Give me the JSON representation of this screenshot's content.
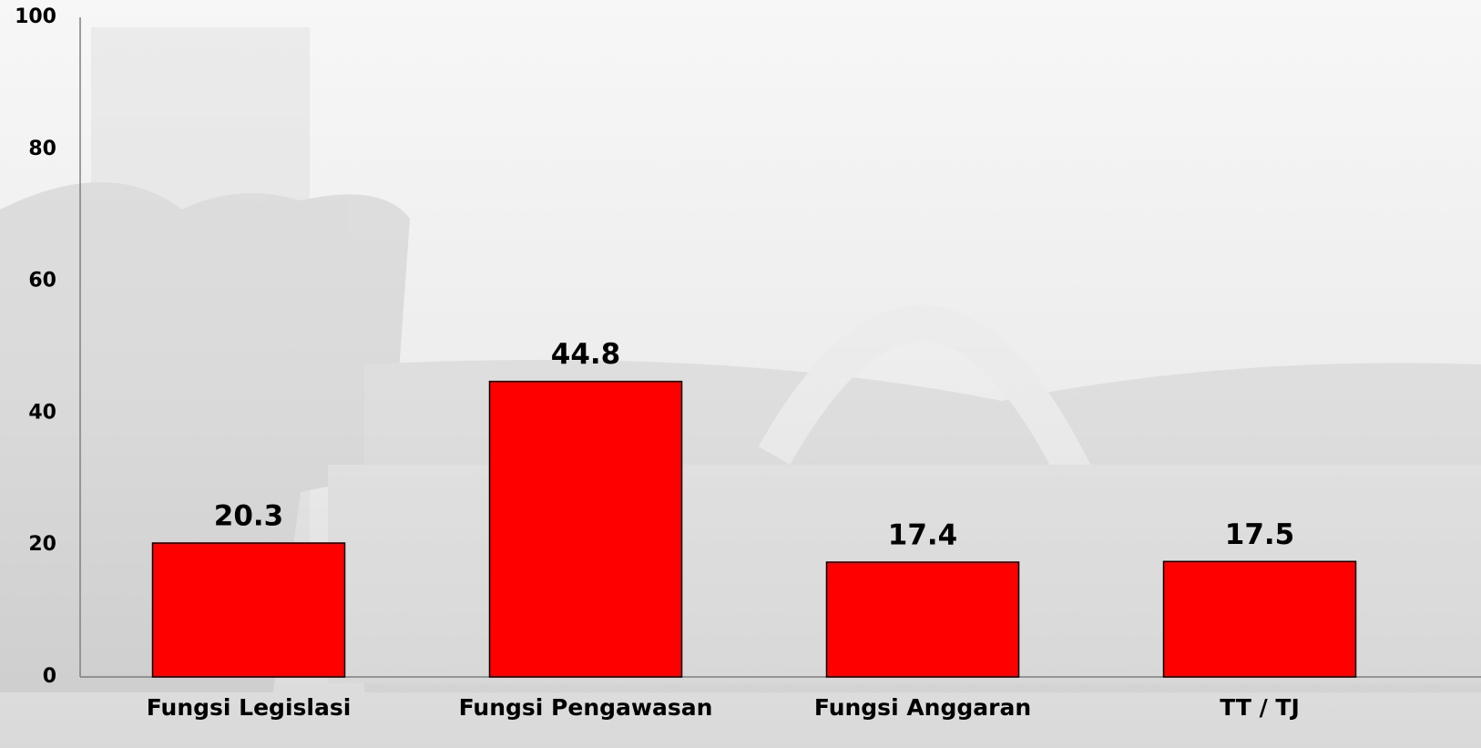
{
  "chart_data": {
    "type": "bar",
    "categories": [
      "Fungsi Legislasi",
      "Fungsi Pengawasan",
      "Fungsi Anggaran",
      "TT / TJ"
    ],
    "values": [
      20.3,
      44.8,
      17.4,
      17.5
    ],
    "color": "#ff0000",
    "ylim": [
      0,
      100
    ],
    "yticks": [
      0,
      20,
      40,
      60,
      80,
      100
    ],
    "grid": false
  }
}
